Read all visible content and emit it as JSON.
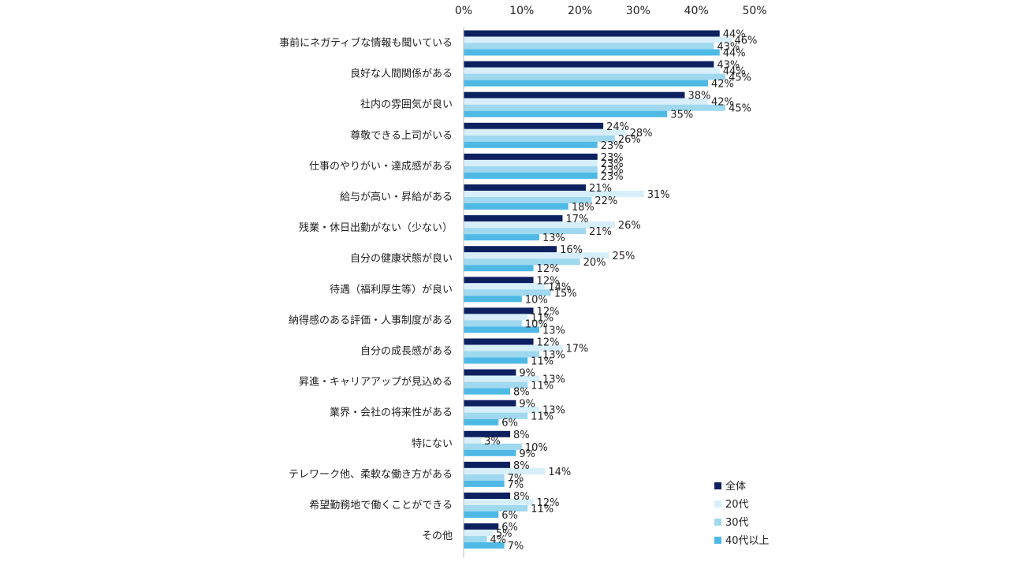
{
  "chart_data": {
    "type": "bar",
    "orientation": "horizontal",
    "xlim": [
      0,
      50
    ],
    "ticks": [
      "0%",
      "10%",
      "20%",
      "30%",
      "40%",
      "50%"
    ],
    "tick_values": [
      0,
      10,
      20,
      30,
      40,
      50
    ],
    "grid": false,
    "legend_position": "bottom-right",
    "categories": [
      "事前にネガティブな情報も聞いている",
      "良好な人間関係がある",
      "社内の雰囲気が良い",
      "尊敬できる上司がいる",
      "仕事のやりがい・達成感がある",
      "給与が高い・昇給がある",
      "残業・休日出勤がない（少ない）",
      "自分の健康状態が良い",
      "待遇（福利厚生等）が良い",
      "納得感のある評価・人事制度がある",
      "自分の成長感がある",
      "昇進・キャリアアップが見込める",
      "業界・会社の将来性がある",
      "特にない",
      "テレワーク他、柔軟な働き方がある",
      "希望勤務地で働くことができる",
      "その他"
    ],
    "series": [
      {
        "name": "全体",
        "color": "#0d2160",
        "values": [
          44,
          43,
          38,
          24,
          23,
          21,
          17,
          16,
          12,
          12,
          12,
          9,
          9,
          8,
          8,
          8,
          6
        ]
      },
      {
        "name": "20代",
        "color": "#d7effa",
        "values": [
          46,
          44,
          42,
          28,
          23,
          31,
          26,
          25,
          14,
          11,
          17,
          13,
          13,
          3,
          14,
          12,
          5
        ]
      },
      {
        "name": "30代",
        "color": "#9fd8ef",
        "values": [
          43,
          45,
          45,
          26,
          23,
          22,
          21,
          20,
          15,
          10,
          13,
          11,
          11,
          10,
          7,
          11,
          4
        ]
      },
      {
        "name": "40代以上",
        "color": "#4fb9e6",
        "values": [
          44,
          42,
          35,
          23,
          23,
          18,
          13,
          12,
          10,
          13,
          11,
          8,
          6,
          9,
          7,
          6,
          7
        ]
      }
    ],
    "value_suffix": "%"
  }
}
